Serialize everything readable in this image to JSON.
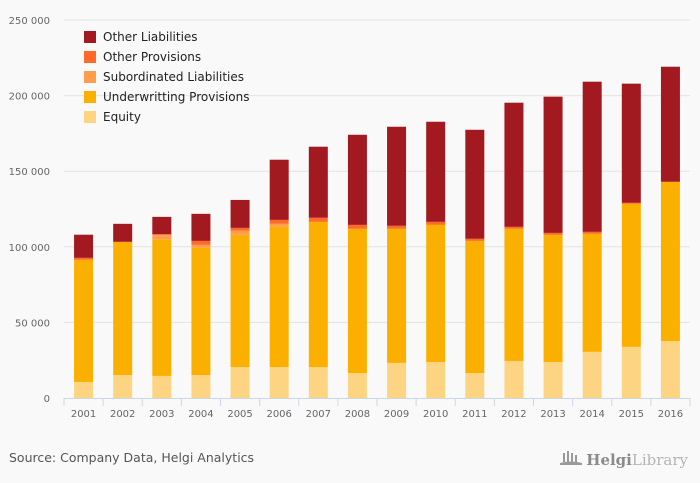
{
  "chart_data": {
    "type": "bar",
    "stacked": true,
    "title": "",
    "xlabel": "",
    "ylabel": "",
    "ylim": [
      0,
      250000
    ],
    "yticks": [
      0,
      50000,
      100000,
      150000,
      200000,
      250000
    ],
    "ytick_labels": [
      "0",
      "50 000",
      "100 000",
      "150 000",
      "200 000",
      "250 000"
    ],
    "grid": true,
    "legend_position": "top-left",
    "categories": [
      "2001",
      "2002",
      "2003",
      "2004",
      "2005",
      "2006",
      "2007",
      "2008",
      "2009",
      "2010",
      "2011",
      "2012",
      "2013",
      "2014",
      "2015",
      "2016"
    ],
    "series": [
      {
        "name": "Equity",
        "color": "#FDD582",
        "values": [
          10600,
          15200,
          14600,
          15200,
          20500,
          20500,
          20500,
          16500,
          23200,
          23800,
          16500,
          24500,
          23800,
          30500,
          33800,
          37700
        ]
      },
      {
        "name": "Underwritting Provisions",
        "color": "#FBB000",
        "values": [
          80800,
          88100,
          90000,
          84100,
          87400,
          92700,
          96000,
          95400,
          88700,
          90700,
          87400,
          87400,
          84100,
          78100,
          94600,
          105300
        ]
      },
      {
        "name": "Subordinated Liabilities",
        "color": "#FF9E4A",
        "values": [
          0,
          0,
          3300,
          2000,
          2700,
          2000,
          0,
          0,
          0,
          0,
          0,
          0,
          0,
          0,
          0,
          0
        ]
      },
      {
        "name": "Other Provisions",
        "color": "#FF6A28",
        "values": [
          1300,
          0,
          400,
          2600,
          1900,
          2600,
          2700,
          2600,
          2000,
          2000,
          1400,
          1300,
          1300,
          1300,
          700,
          0
        ]
      },
      {
        "name": "Other Liabilities",
        "color": "#A31920",
        "values": [
          15300,
          11900,
          11500,
          17900,
          18500,
          39800,
          47000,
          59600,
          65500,
          66200,
          72100,
          82100,
          90100,
          99300,
          78800,
          76100
        ]
      }
    ]
  },
  "legend": [
    {
      "label": "Other Liabilities",
      "color": "#A31920"
    },
    {
      "label": "Other Provisions",
      "color": "#FF6A28"
    },
    {
      "label": "Subordinated Liabilities",
      "color": "#FF9E4A"
    },
    {
      "label": "Underwritting Provisions",
      "color": "#FBB000"
    },
    {
      "label": "Equity",
      "color": "#FDD582"
    }
  ],
  "footer": {
    "source": "Source: Company Data, Helgi Analytics",
    "logo_bold": "Helgi",
    "logo_light": "Library"
  }
}
